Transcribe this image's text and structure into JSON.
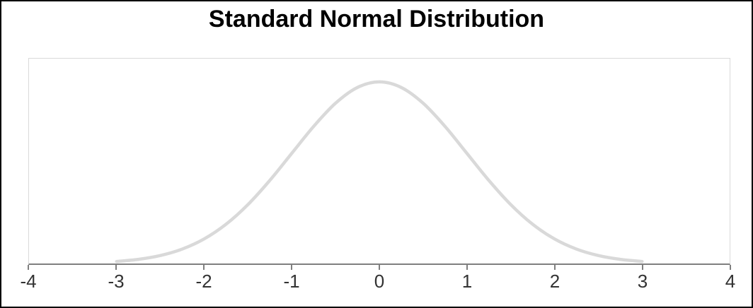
{
  "window": {
    "background": "#ffffff",
    "frame_border_color": "#000000"
  },
  "chart_data": {
    "type": "line",
    "title": "Standard Normal Distribution",
    "xlabel": "",
    "ylabel": "",
    "xlim": [
      -4,
      4
    ],
    "ylim": [
      0,
      0.45
    ],
    "grid": false,
    "legend": "none",
    "x_ticks": [
      -4,
      -3,
      -2,
      -1,
      0,
      1,
      2,
      3,
      4
    ],
    "x_tick_labels": [
      "-4",
      "-3",
      "-2",
      "-1",
      "0",
      "1",
      "2",
      "3",
      "4"
    ],
    "series": [
      {
        "name": "standard-normal-pdf",
        "color": "#d9d9d9",
        "stroke_width": 4.5,
        "x": [
          -3,
          -2.75,
          -2.5,
          -2.25,
          -2,
          -1.75,
          -1.5,
          -1.25,
          -1,
          -0.75,
          -0.5,
          -0.25,
          0,
          0.25,
          0.5,
          0.75,
          1,
          1.25,
          1.5,
          1.75,
          2,
          2.25,
          2.5,
          2.75,
          3
        ],
        "y": [
          0.00443,
          0.00909,
          0.01753,
          0.03174,
          0.05399,
          0.08628,
          0.12952,
          0.18265,
          0.24197,
          0.30114,
          0.35207,
          0.38667,
          0.39894,
          0.38667,
          0.35207,
          0.30114,
          0.24197,
          0.18265,
          0.12952,
          0.08628,
          0.05399,
          0.03174,
          0.01753,
          0.00909,
          0.00443
        ]
      }
    ],
    "colors": {
      "plot_border": "#d9d9d9",
      "axis_line": "#7f7f7f",
      "tick_mark": "#7f7f7f",
      "tick_label": "#333333",
      "title": "#000000"
    }
  }
}
